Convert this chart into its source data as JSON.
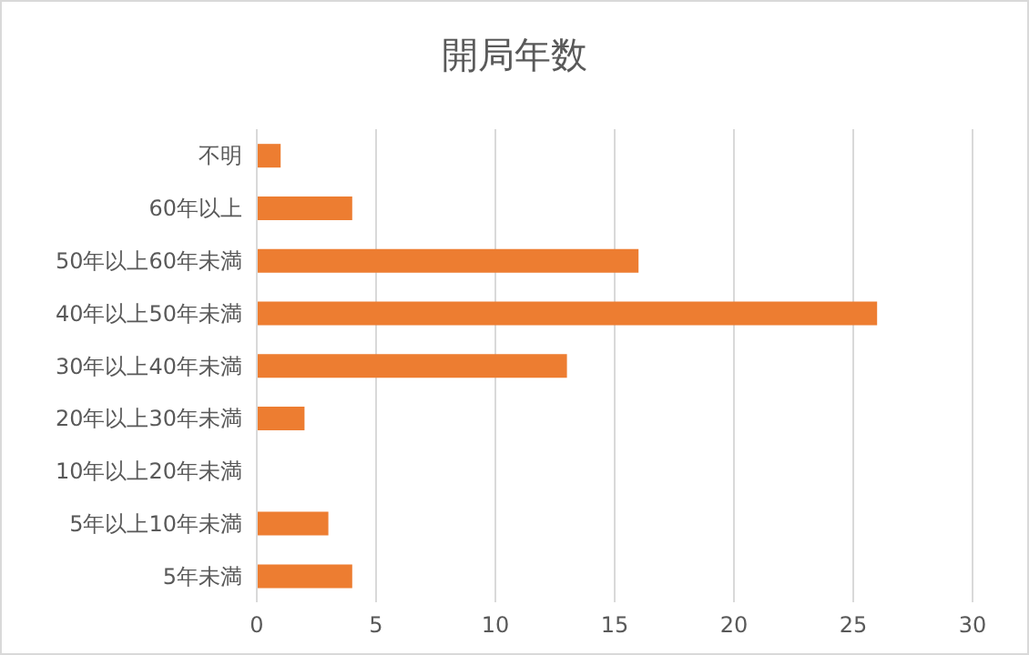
{
  "chart_data": {
    "type": "bar",
    "orientation": "horizontal",
    "title": "開局年数",
    "categories": [
      "不明",
      "60年以上",
      "50年以上60年未満",
      "40年以上50年未満",
      "30年以上40年未満",
      "20年以上30年未満",
      "10年以上20年未満",
      "5年以上10年未満",
      "5年未満"
    ],
    "values": [
      1,
      4,
      16,
      26,
      13,
      2,
      0,
      3,
      4
    ],
    "color": "#ed7d31",
    "xlim": [
      0,
      30
    ],
    "xticks": [
      0,
      5,
      10,
      15,
      20,
      25,
      30
    ],
    "grid": "x"
  }
}
